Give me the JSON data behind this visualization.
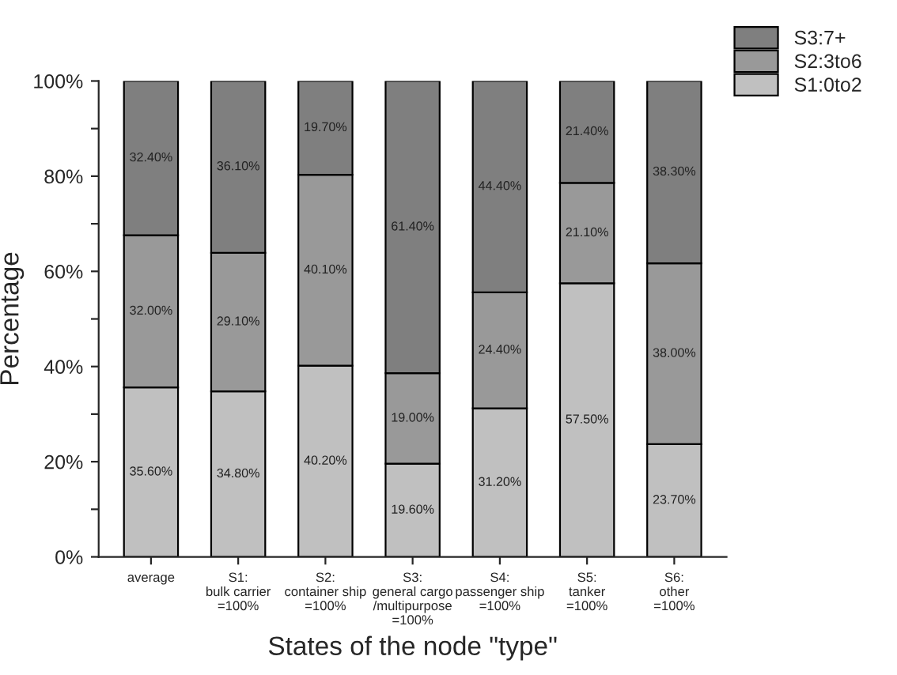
{
  "chart_data": {
    "type": "bar",
    "stacked": true,
    "xlabel": "States of the node \"type\"",
    "ylabel": "Percentage",
    "categories": [
      "average",
      "S1:\nbulk carrier\n=100%",
      "S2:\ncontainer ship\n=100%",
      "S3:\ngeneral cargo\n/multipurpose\n=100%",
      "S4:\npassenger ship\n=100%",
      "S5:\ntanker\n=100%",
      "S6:\nother\n=100%"
    ],
    "series": [
      {
        "name": "S1:0to2",
        "color": "#c0c0c0",
        "values": [
          35.6,
          34.8,
          40.2,
          19.6,
          31.2,
          57.5,
          23.7
        ],
        "value_labels": [
          "35.60%",
          "34.80%",
          "40.20%",
          "19.60%",
          "31.20%",
          "57.50%",
          "23.70%"
        ]
      },
      {
        "name": "S2:3to6",
        "color": "#999999",
        "values": [
          32.0,
          29.1,
          40.1,
          19.0,
          24.4,
          21.1,
          38.0
        ],
        "value_labels": [
          "32.00%",
          "29.10%",
          "40.10%",
          "19.00%",
          "24.40%",
          "21.10%",
          "38.00%"
        ]
      },
      {
        "name": "S3:7+",
        "color": "#7f7f7f",
        "values": [
          32.4,
          36.1,
          19.7,
          61.4,
          44.4,
          21.4,
          38.3
        ],
        "value_labels": [
          "32.40%",
          "36.10%",
          "19.70%",
          "61.40%",
          "44.40%",
          "21.40%",
          "38.30%"
        ]
      }
    ],
    "ylim": [
      0,
      100
    ],
    "yticks": [
      {
        "value": 0,
        "label": "0%"
      },
      {
        "value": 10,
        "label": null
      },
      {
        "value": 20,
        "label": "20%"
      },
      {
        "value": 30,
        "label": null
      },
      {
        "value": 40,
        "label": "40%"
      },
      {
        "value": 50,
        "label": null
      },
      {
        "value": 60,
        "label": "60%"
      },
      {
        "value": 70,
        "label": null
      },
      {
        "value": 80,
        "label": "80%"
      },
      {
        "value": 90,
        "label": null
      },
      {
        "value": 100,
        "label": "100%"
      }
    ],
    "grid": false,
    "legend": "top right"
  }
}
